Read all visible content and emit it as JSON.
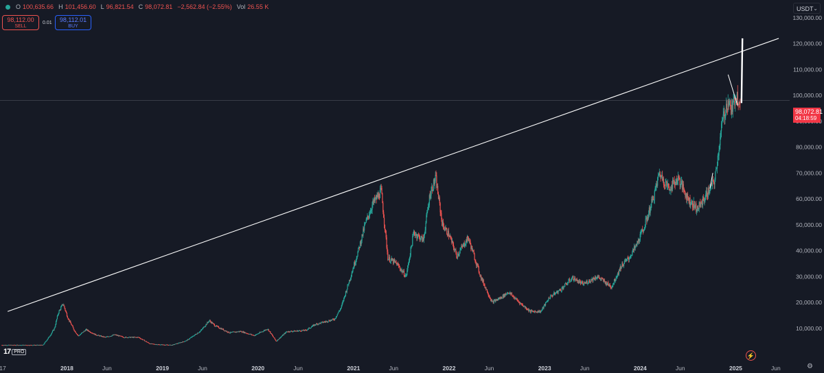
{
  "header": {
    "o_label": "O",
    "o_value": "100,635.66",
    "h_label": "H",
    "h_value": "101,456.60",
    "l_label": "L",
    "l_value": "96,821.54",
    "c_label": "C",
    "c_value": "98,072.81",
    "change": "−2,562.84 (−2.55%)",
    "vol_label": "Vol",
    "vol_value": "26.55 K"
  },
  "trade": {
    "sell_price": "98,112.00",
    "sell_label": "SELL",
    "spread": "0.01",
    "buy_price": "98,112.01",
    "buy_label": "BUY"
  },
  "currency": "USDT",
  "last_price": {
    "value": "98,072.81",
    "countdown": "04:18:59",
    "color": "#f23645"
  },
  "logo_text": "PRO",
  "colors": {
    "background": "#161a25",
    "up": "#26a69a",
    "down": "#ef5350",
    "trendline": "#ffffff",
    "axis_text": "#b2b5be"
  },
  "icons": [
    "trading-view-logo-icon",
    "lightning-icon",
    "gear-icon",
    "chevron-down-icon"
  ],
  "chart_data": {
    "type": "candlestick",
    "scale": "linear",
    "ylim": [
      0,
      135000
    ],
    "y_ticks": [
      10000,
      20000,
      30000,
      40000,
      50000,
      60000,
      70000,
      80000,
      90000,
      100000,
      110000,
      120000,
      130000
    ],
    "y_tick_labels": [
      "10,000.00",
      "20,000.00",
      "30,000.00",
      "40,000.00",
      "50,000.00",
      "60,000.00",
      "70,000.00",
      "80,000.00",
      "90,000.00",
      "100,000.00",
      "110,000.00",
      "120,000.00",
      "130,000.00"
    ],
    "x_labels": [
      {
        "t": 2017.3,
        "label": "17"
      },
      {
        "t": 2018.0,
        "label": "2018"
      },
      {
        "t": 2018.42,
        "label": "Jun"
      },
      {
        "t": 2019.0,
        "label": "2019"
      },
      {
        "t": 2019.42,
        "label": "Jun"
      },
      {
        "t": 2020.0,
        "label": "2020"
      },
      {
        "t": 2020.42,
        "label": "Jun"
      },
      {
        "t": 2021.0,
        "label": "2021"
      },
      {
        "t": 2021.42,
        "label": "Jun"
      },
      {
        "t": 2022.0,
        "label": "2022"
      },
      {
        "t": 2022.42,
        "label": "Jun"
      },
      {
        "t": 2023.0,
        "label": "2023"
      },
      {
        "t": 2023.42,
        "label": "Jun"
      },
      {
        "t": 2024.0,
        "label": "2024"
      },
      {
        "t": 2024.42,
        "label": "Jun"
      },
      {
        "t": 2025.0,
        "label": "2025"
      },
      {
        "t": 2025.42,
        "label": "Jun"
      }
    ],
    "close_series": [
      [
        2017.75,
        3500
      ],
      [
        2017.82,
        7000
      ],
      [
        2017.87,
        10000
      ],
      [
        2017.91,
        16000
      ],
      [
        2017.96,
        19500
      ],
      [
        2018.01,
        14000
      ],
      [
        2018.08,
        9000
      ],
      [
        2018.12,
        7000
      ],
      [
        2018.2,
        9500
      ],
      [
        2018.3,
        7500
      ],
      [
        2018.4,
        6500
      ],
      [
        2018.5,
        7500
      ],
      [
        2018.6,
        6500
      ],
      [
        2018.75,
        6500
      ],
      [
        2018.87,
        4000
      ],
      [
        2018.96,
        3700
      ],
      [
        2019.1,
        3500
      ],
      [
        2019.25,
        5200
      ],
      [
        2019.4,
        9000
      ],
      [
        2019.49,
        13000
      ],
      [
        2019.55,
        11000
      ],
      [
        2019.7,
        8300
      ],
      [
        2019.82,
        8800
      ],
      [
        2019.96,
        7200
      ],
      [
        2020.1,
        9800
      ],
      [
        2020.19,
        5000
      ],
      [
        2020.3,
        8700
      ],
      [
        2020.5,
        9200
      ],
      [
        2020.6,
        11500
      ],
      [
        2020.8,
        13500
      ],
      [
        2020.87,
        18000
      ],
      [
        2020.96,
        29000
      ],
      [
        2021.05,
        40000
      ],
      [
        2021.12,
        50000
      ],
      [
        2021.2,
        58000
      ],
      [
        2021.29,
        63000
      ],
      [
        2021.36,
        37000
      ],
      [
        2021.45,
        35000
      ],
      [
        2021.55,
        30000
      ],
      [
        2021.63,
        47000
      ],
      [
        2021.73,
        44000
      ],
      [
        2021.8,
        62000
      ],
      [
        2021.86,
        68000
      ],
      [
        2021.93,
        50000
      ],
      [
        2022.0,
        46000
      ],
      [
        2022.08,
        38000
      ],
      [
        2022.2,
        45000
      ],
      [
        2022.33,
        30000
      ],
      [
        2022.45,
        20000
      ],
      [
        2022.55,
        22000
      ],
      [
        2022.62,
        24000
      ],
      [
        2022.75,
        19500
      ],
      [
        2022.85,
        16500
      ],
      [
        2022.96,
        16500
      ],
      [
        2023.05,
        22000
      ],
      [
        2023.17,
        25000
      ],
      [
        2023.29,
        29500
      ],
      [
        2023.4,
        27000
      ],
      [
        2023.55,
        30000
      ],
      [
        2023.7,
        26000
      ],
      [
        2023.8,
        34000
      ],
      [
        2023.88,
        37000
      ],
      [
        2023.96,
        42000
      ],
      [
        2024.05,
        50000
      ],
      [
        2024.15,
        62000
      ],
      [
        2024.2,
        70000
      ],
      [
        2024.3,
        64000
      ],
      [
        2024.4,
        68000
      ],
      [
        2024.5,
        60000
      ],
      [
        2024.6,
        56000
      ],
      [
        2024.7,
        62000
      ],
      [
        2024.78,
        67000
      ],
      [
        2024.86,
        90000
      ],
      [
        2024.92,
        98000
      ],
      [
        2024.96,
        94000
      ],
      [
        2025.0,
        100000
      ],
      [
        2025.05,
        98072.81
      ]
    ],
    "annotations": [
      {
        "type": "trendline",
        "from": [
          2017.38,
          16500
        ],
        "to": [
          2025.45,
          122000
        ]
      },
      {
        "type": "horizontal_line",
        "value": 98072.81
      },
      {
        "type": "drawing_line",
        "from": [
          2024.92,
          108000
        ],
        "to": [
          2025.02,
          96000
        ]
      },
      {
        "type": "drawing_line",
        "from": [
          2024.73,
          64000
        ],
        "to": [
          2024.76,
          70000
        ]
      },
      {
        "type": "drawing_line",
        "from": [
          2025.06,
          97000
        ],
        "to": [
          2025.07,
          122000
        ]
      }
    ]
  }
}
